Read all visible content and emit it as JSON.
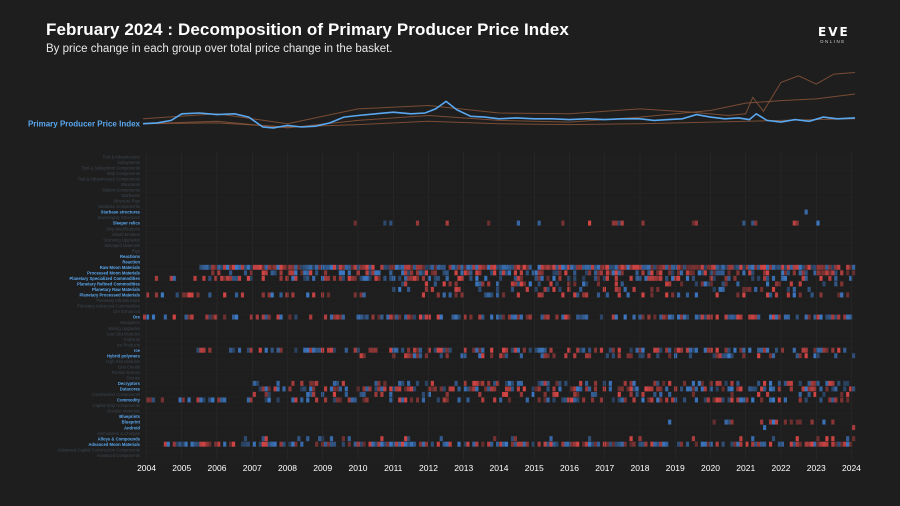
{
  "header": {
    "title": "February 2024 : Decomposition of Primary Producer Price Index",
    "subtitle": "By price change in each group over total price change in the basket."
  },
  "logo": {
    "main": "EVE",
    "sub": "ONLINE"
  },
  "colors": {
    "background": "#1e1e1e",
    "ppi_line": "#5aa8f0",
    "context_line": "#8a5538",
    "positive_change": "#e04848",
    "negative_change": "#3f7fd0",
    "highlight_label": "#5aa8f0",
    "dim_label": "#3c4650"
  },
  "chart_data": {
    "type": "heatmap",
    "title": "February 2024 : Decomposition of Primary Producer Price Index",
    "x_ticks": [
      "2004",
      "2005",
      "2006",
      "2007",
      "2008",
      "2009",
      "2010",
      "2011",
      "2012",
      "2013",
      "2014",
      "2015",
      "2016",
      "2017",
      "2018",
      "2019",
      "2020",
      "2021",
      "2022",
      "2023",
      "2024"
    ],
    "x_range": [
      2003.9,
      2024.1
    ],
    "legend_encoding": {
      "red": "price increase",
      "blue": "price decrease"
    },
    "ppi_series": {
      "name": "Primary Producer Price Index",
      "x": [
        2003.9,
        2004.3,
        2004.7,
        2005.0,
        2005.5,
        2006.0,
        2006.5,
        2006.9,
        2007.3,
        2007.6,
        2008.0,
        2008.4,
        2008.8,
        2009.2,
        2009.6,
        2010.0,
        2010.5,
        2011.0,
        2011.5,
        2011.9,
        2012.2,
        2012.5,
        2012.8,
        2013.2,
        2013.6,
        2014.0,
        2014.5,
        2015.0,
        2015.5,
        2016.0,
        2016.5,
        2017.0,
        2017.5,
        2018.0,
        2018.4,
        2018.8,
        2019.2,
        2019.6,
        2020.0,
        2020.4,
        2020.8,
        2021.1,
        2021.3,
        2021.6,
        2022.0,
        2022.4,
        2022.8,
        2023.2,
        2023.6,
        2024.1
      ],
      "y": [
        100,
        101,
        104,
        112,
        113,
        111,
        112,
        108,
        96,
        95,
        98,
        96,
        97,
        101,
        108,
        110,
        112,
        114,
        112,
        113,
        118,
        127,
        117,
        109,
        108,
        106,
        107,
        106,
        106,
        105,
        106,
        105,
        106,
        106,
        104,
        105,
        106,
        111,
        108,
        106,
        107,
        105,
        112,
        104,
        102,
        105,
        103,
        108,
        106,
        107
      ]
    },
    "context_series": [
      {
        "x": [
          2003.9,
          2006,
          2008,
          2010,
          2012,
          2014,
          2016,
          2018,
          2019.5,
          2020.5,
          2021.0,
          2021.2,
          2021.5,
          2022,
          2022.5,
          2023,
          2023.5,
          2024.1
        ],
        "y": [
          106,
          112,
          100,
          118,
          122,
          113,
          112,
          118,
          114,
          110,
          112,
          132,
          115,
          150,
          158,
          148,
          160,
          162
        ]
      },
      {
        "x": [
          2003.9,
          2006,
          2008,
          2010,
          2012,
          2014,
          2016,
          2018,
          2019,
          2020,
          2021,
          2022,
          2023,
          2024.1
        ],
        "y": [
          100,
          103,
          95,
          104,
          110,
          104,
          102,
          108,
          112,
          116,
          125,
          128,
          130,
          136
        ]
      },
      {
        "x": [
          2003.9,
          2006,
          2008,
          2010,
          2012,
          2014,
          2016,
          2018,
          2020,
          2022,
          2024.1
        ],
        "y": [
          100,
          101,
          96,
          99,
          103,
          100,
          99,
          100,
          102,
          104,
          106
        ]
      }
    ],
    "rows": [
      {
        "label": "Tool & Infrastructure",
        "highlight": false
      },
      {
        "label": "Subsystems",
        "highlight": false
      },
      {
        "label": "Tool & Subsystem Components",
        "highlight": false
      },
      {
        "label": "Ship Components",
        "highlight": false
      },
      {
        "label": "Tool & Infrastructure Components",
        "highlight": false
      },
      {
        "label": "Structures",
        "highlight": false
      },
      {
        "label": "Station Components",
        "highlight": false
      },
      {
        "label": "Starbases",
        "highlight": false
      },
      {
        "label": "Structure Rigs",
        "highlight": false
      },
      {
        "label": "Starbase Components",
        "highlight": false
      },
      {
        "label": "Starbase structures",
        "highlight": true,
        "density": 0.12,
        "start": 2021.0
      },
      {
        "label": "Sovereignty Structures",
        "highlight": false
      },
      {
        "label": "Sleeper relics",
        "highlight": true,
        "density": 0.18,
        "start": 2009.2
      },
      {
        "label": "Ship Modifications",
        "highlight": false
      },
      {
        "label": "Shield Emitters",
        "highlight": false
      },
      {
        "label": "Scanning Upgrades",
        "highlight": false
      },
      {
        "label": "Salvaged Materials",
        "highlight": false
      },
      {
        "label": "Rigs",
        "highlight": false
      },
      {
        "label": "Reactions",
        "highlight": true
      },
      {
        "label": "Reaction",
        "highlight": true
      },
      {
        "label": "Raw Moon Materials",
        "highlight": true,
        "density": 0.95,
        "start": 2005.5
      },
      {
        "label": "Processed Moon Materials",
        "highlight": true,
        "density": 0.55,
        "start": 2005.8
      },
      {
        "label": "Planetary Specialized Commodities",
        "highlight": true,
        "density": 0.45,
        "start": 2004.0
      },
      {
        "label": "Planetary Refined Commodities",
        "highlight": true,
        "density": 0.35,
        "start": 2011.0
      },
      {
        "label": "Planetary Raw Materials",
        "highlight": true,
        "density": 0.22,
        "start": 2011.0
      },
      {
        "label": "Planetary Processed Materials",
        "highlight": true,
        "density": 0.3,
        "start": 2004.0
      },
      {
        "label": "Planetary Infrastructure",
        "highlight": false
      },
      {
        "label": "Planetary Advanced Commodities",
        "highlight": false
      },
      {
        "label": "Ore Enhanced",
        "highlight": false
      },
      {
        "label": "Ore",
        "highlight": true,
        "density": 0.55,
        "start": 2003.9
      },
      {
        "label": "Navigation",
        "highlight": false
      },
      {
        "label": "Mining Upgrades",
        "highlight": false
      },
      {
        "label": "Low Slot Modules",
        "highlight": false
      },
      {
        "label": "Implants",
        "highlight": false
      },
      {
        "label": "Ice Products",
        "highlight": false
      },
      {
        "label": "Ice",
        "highlight": true,
        "density": 0.55,
        "start": 2005.4
      },
      {
        "label": "Hybrid polymers",
        "highlight": true,
        "density": 0.3,
        "start": 2010.0
      },
      {
        "label": "High Slot Modules",
        "highlight": false
      },
      {
        "label": "Gas Clouds",
        "highlight": false
      },
      {
        "label": "Faction Drones",
        "highlight": false
      },
      {
        "label": "Drones",
        "highlight": false
      },
      {
        "label": "Decryptors",
        "highlight": true,
        "density": 0.35,
        "start": 2007.0
      },
      {
        "label": "Datacores",
        "highlight": true,
        "density": 0.55,
        "start": 2007.0
      },
      {
        "label": "Construction Components",
        "highlight": false,
        "density": 0.2,
        "start": 2007.0
      },
      {
        "label": "Commodity",
        "highlight": true,
        "density": 0.4,
        "start": 2003.9
      },
      {
        "label": "Capital Ship Components",
        "highlight": false
      },
      {
        "label": "Booster Materials",
        "highlight": false
      },
      {
        "label": "Blueprints",
        "highlight": true
      },
      {
        "label": "Blueprint",
        "highlight": true,
        "density": 0.15,
        "start": 2018.8
      },
      {
        "label": "Android",
        "highlight": true,
        "density": 0.12,
        "start": 2021.0
      },
      {
        "label": "Ammunition & Charges",
        "highlight": false
      },
      {
        "label": "Alloys & Compounds",
        "highlight": true,
        "density": 0.2,
        "start": 2006.5
      },
      {
        "label": "Advanced Moon Materials",
        "highlight": true,
        "density": 0.75,
        "start": 2004.5
      },
      {
        "label": "Advanced Capital Construction Components",
        "highlight": false
      },
      {
        "label": "Advanced Components",
        "highlight": false
      }
    ]
  }
}
